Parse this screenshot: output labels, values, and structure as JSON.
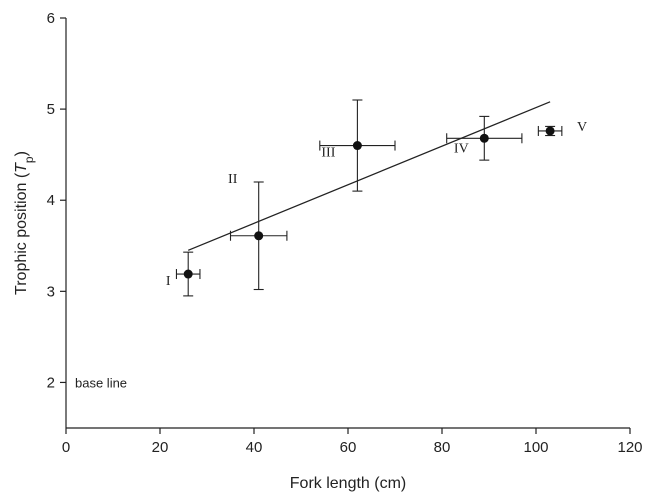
{
  "chart_data": {
    "type": "scatter",
    "title": "",
    "xlabel": "Fork length (cm)",
    "ylabel_main": "Trophic position (",
    "ylabel_italic": "T",
    "ylabel_sub": "p",
    "ylabel_close": ")",
    "xlim": [
      0,
      120
    ],
    "ylim": [
      1.5,
      6
    ],
    "xticks": [
      0,
      20,
      40,
      60,
      80,
      100,
      120
    ],
    "yticks": [
      2,
      3,
      4,
      5,
      6
    ],
    "grid": false,
    "points": [
      {
        "label": "I",
        "x": 26,
        "y": 3.19,
        "xerr": 2.5,
        "yerr": 0.24
      },
      {
        "label": "II",
        "x": 41,
        "y": 3.61,
        "xerr": 6.0,
        "yerr": 0.59
      },
      {
        "label": "III",
        "x": 62,
        "y": 4.6,
        "xerr": 8.0,
        "yerr": 0.5
      },
      {
        "label": "IV",
        "x": 89,
        "y": 4.68,
        "xerr": 8.0,
        "yerr": 0.24
      },
      {
        "label": "V",
        "x": 103,
        "y": 4.76,
        "xerr": 2.5,
        "yerr": 0.05
      }
    ],
    "trendline": {
      "x": [
        26,
        103
      ],
      "y": [
        3.45,
        5.08
      ]
    },
    "annotation": {
      "text": "base line",
      "x": 0,
      "y": 2
    }
  }
}
